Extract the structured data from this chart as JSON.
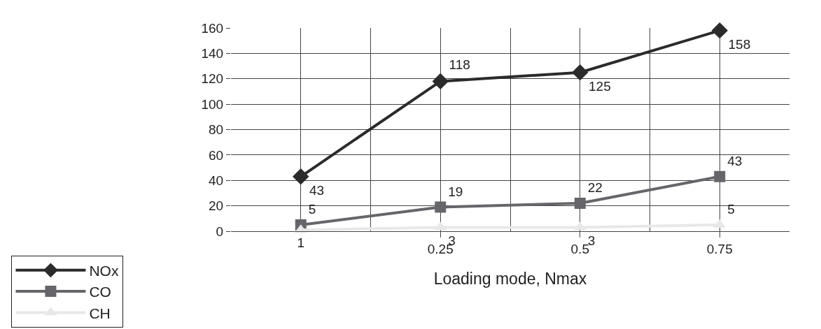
{
  "chart_data": {
    "type": "line",
    "xlabel": "Loading mode, Nmax",
    "categories": [
      null,
      "0.25",
      "0.5",
      "0.75"
    ],
    "series": [
      {
        "name": "NOx",
        "color": "#2b2b2b",
        "values": [
          43,
          118,
          125,
          158
        ],
        "marker": "diamond"
      },
      {
        "name": "CO",
        "color": "#66666a",
        "values": [
          5,
          19,
          22,
          43
        ],
        "marker": "square"
      },
      {
        "name": "CH",
        "color": "#e8e8e8",
        "values": [
          1,
          3,
          3,
          5
        ],
        "marker": "triangle"
      }
    ],
    "ylim": [
      0,
      160
    ],
    "yticks": [
      0,
      20,
      40,
      60,
      80,
      100,
      120,
      140,
      160
    ],
    "grid": true,
    "legend": "bottom left",
    "data_labels": true
  }
}
